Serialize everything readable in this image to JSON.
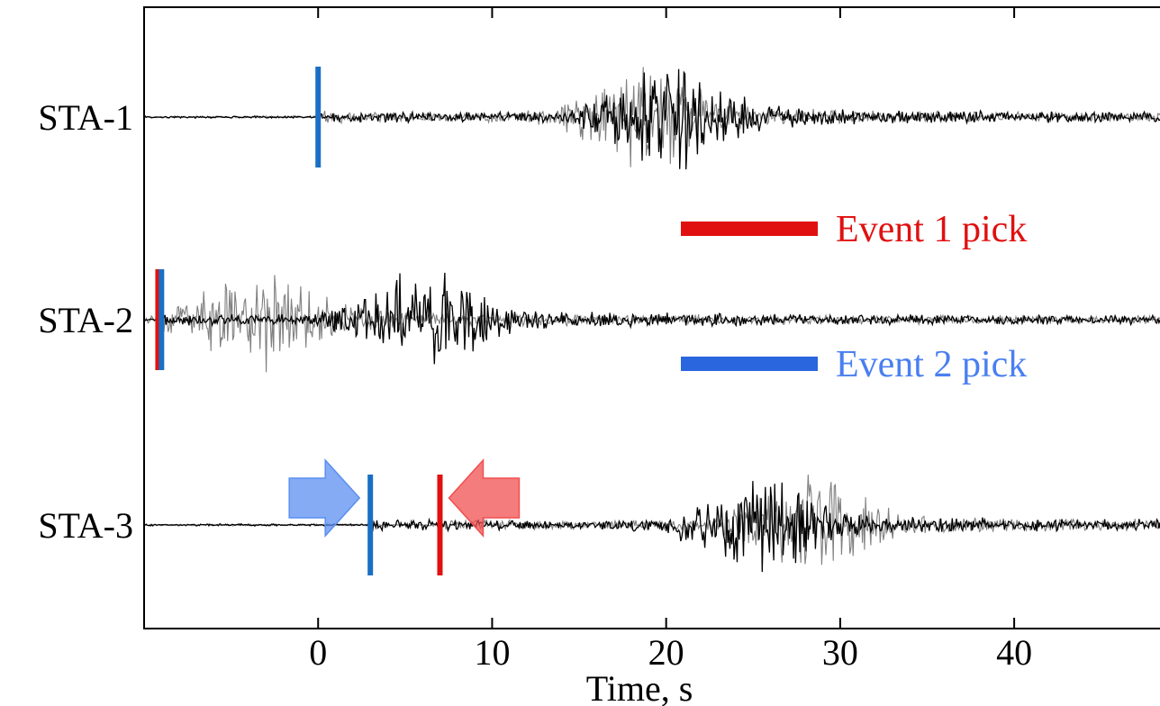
{
  "chart_data": {
    "type": "line",
    "xlabel": "Time, s",
    "xlim": [
      -10,
      49
    ],
    "x_ticks": [
      0,
      10,
      20,
      30,
      40
    ],
    "stations": [
      "STA-1",
      "STA-2",
      "STA-3"
    ],
    "series": [
      {
        "station": "STA-1",
        "event": 1,
        "color": "#808080",
        "onset_s": 0,
        "burst_s": 18.5,
        "amp": 1.0
      },
      {
        "station": "STA-1",
        "event": 2,
        "color": "#000000",
        "onset_s": 0,
        "burst_s": 20.0,
        "amp": 1.0
      },
      {
        "station": "STA-2",
        "event": 1,
        "color": "#808080",
        "onset_s": -9,
        "burst_s": -3.5,
        "amp": 1.0
      },
      {
        "station": "STA-2",
        "event": 2,
        "color": "#000000",
        "onset_s": -9,
        "burst_s": 6.0,
        "amp": 1.0
      },
      {
        "station": "STA-3",
        "event": 1,
        "color": "#808080",
        "onset_s": 7,
        "burst_s": 28.0,
        "amp": 1.0
      },
      {
        "station": "STA-3",
        "event": 2,
        "color": "#000000",
        "onset_s": 3,
        "burst_s": 25.0,
        "amp": 1.0
      }
    ],
    "picks": [
      {
        "station": "STA-1",
        "time_s": 0,
        "color": "#1a6fc4"
      },
      {
        "station": "STA-2",
        "time_s": -9.2,
        "color": "#e01010"
      },
      {
        "station": "STA-2",
        "time_s": -9.0,
        "color": "#1a6fc4"
      },
      {
        "station": "STA-3",
        "time_s": 3.0,
        "color": "#1a6fc4"
      },
      {
        "station": "STA-3",
        "time_s": 7.0,
        "color": "#e01010"
      }
    ],
    "legend": [
      {
        "label": "Event 1 pick",
        "color": "#e01010",
        "text_color": "#e01010"
      },
      {
        "label": "Event 2 pick",
        "color": "#2a66dd",
        "text_color": "#4a7ff0"
      }
    ],
    "arrows": [
      {
        "station": "STA-3",
        "direction": "right",
        "color": "#5b8ff0"
      },
      {
        "station": "STA-3",
        "direction": "left",
        "color": "#f05050"
      }
    ]
  }
}
